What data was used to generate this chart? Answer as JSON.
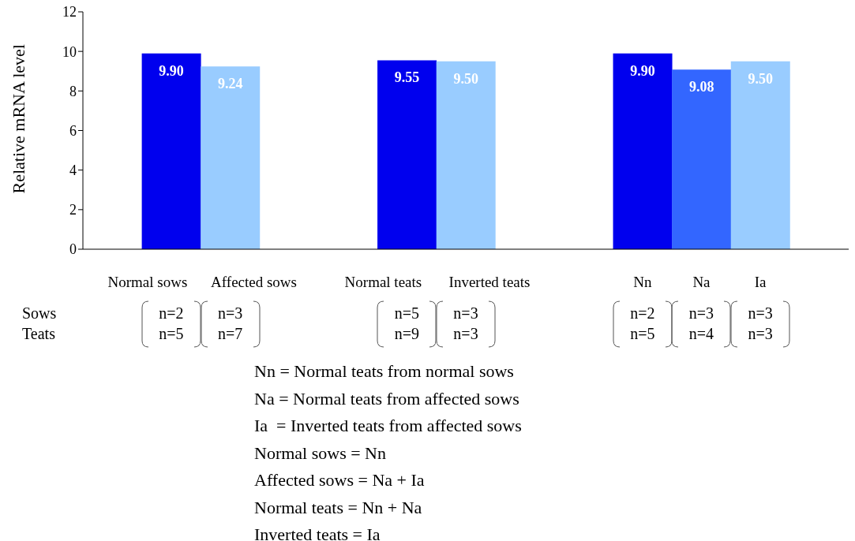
{
  "chart_data": {
    "type": "bar",
    "ylabel": "Relative mRNA level",
    "categories": [
      null,
      "Normal sows",
      "Affected sows",
      null,
      null,
      "Normal teats",
      "Inverted teats",
      null,
      null,
      "Nn",
      "Na",
      "Ia",
      null
    ],
    "values": [
      null,
      9.9,
      9.24,
      null,
      null,
      9.55,
      9.5,
      null,
      null,
      9.9,
      9.08,
      9.5,
      null
    ],
    "colors": [
      "#0000ee",
      "#0000ee",
      "#99ccff",
      "#0000ee",
      "#0000ee",
      "#0000ee",
      "#99ccff",
      "#0000ee",
      "#0000ee",
      "#0000ee",
      "#3366ff",
      "#99ccff",
      "#0000ee"
    ],
    "value_labels": [
      null,
      "9.90",
      "9.24",
      null,
      null,
      "9.55",
      "9.50",
      null,
      null,
      "9.90",
      "9.08",
      "9.50",
      null
    ],
    "ylim": [
      0,
      12
    ],
    "yticks": [
      0,
      2,
      4,
      6,
      8,
      10,
      12
    ],
    "grid": false,
    "legend": false,
    "annotations": [
      "Sows\nTeats",
      "n=2\nn=5",
      "n=3\nn=7",
      "n=5\nn=9",
      "n=3\nn=3",
      "n=2\nn=5",
      "n=3\nn=4",
      "n=3\nn=3",
      "Nn = Normal teats from normal sows",
      "Na = Normal teats from affected sows",
      "Ia  = Inverted teats from affected sows",
      "Normal sows = Nn",
      "Affected sows = Na + Ia",
      "Normal teats = Nn + Na",
      "Inverted teats = Ia"
    ]
  }
}
